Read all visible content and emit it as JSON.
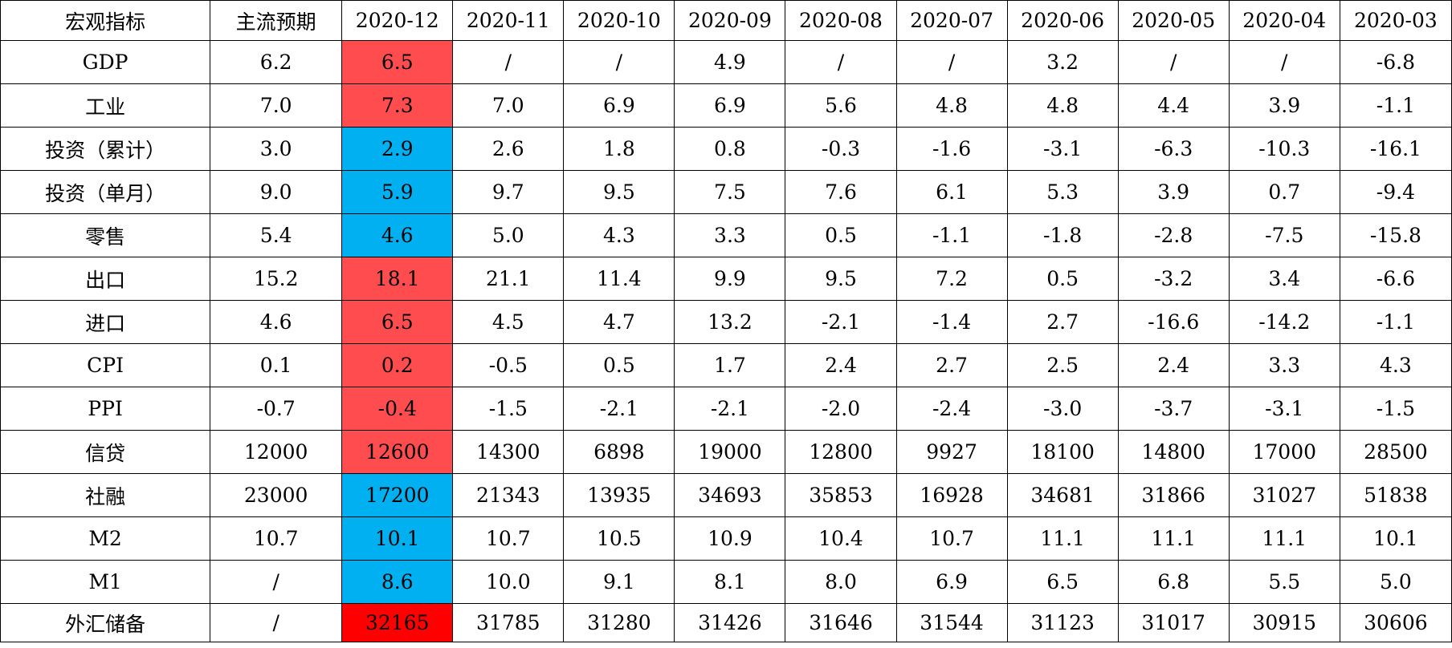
{
  "table": {
    "headers": [
      "宏观指标",
      "主流预期",
      "2020-12",
      "2020-11",
      "2020-10",
      "2020-09",
      "2020-08",
      "2020-07",
      "2020-06",
      "2020-05",
      "2020-04",
      "2020-03"
    ],
    "rows": [
      {
        "indicator": "GDP",
        "expected": "6.2",
        "highlight": "red",
        "values": [
          "6.5",
          "/",
          "/",
          "4.9",
          "/",
          "/",
          "3.2",
          "/",
          "/",
          "-6.8"
        ]
      },
      {
        "indicator": "工业",
        "expected": "7.0",
        "highlight": "red",
        "values": [
          "7.3",
          "7.0",
          "6.9",
          "6.9",
          "5.6",
          "4.8",
          "4.8",
          "4.4",
          "3.9",
          "-1.1"
        ]
      },
      {
        "indicator": "投资（累计）",
        "expected": "3.0",
        "highlight": "blue",
        "values": [
          "2.9",
          "2.6",
          "1.8",
          "0.8",
          "-0.3",
          "-1.6",
          "-3.1",
          "-6.3",
          "-10.3",
          "-16.1"
        ]
      },
      {
        "indicator": "投资（单月）",
        "expected": "9.0",
        "highlight": "blue",
        "values": [
          "5.9",
          "9.7",
          "9.5",
          "7.5",
          "7.6",
          "6.1",
          "5.3",
          "3.9",
          "0.7",
          "-9.4"
        ]
      },
      {
        "indicator": "零售",
        "expected": "5.4",
        "highlight": "blue",
        "values": [
          "4.6",
          "5.0",
          "4.3",
          "3.3",
          "0.5",
          "-1.1",
          "-1.8",
          "-2.8",
          "-7.5",
          "-15.8"
        ]
      },
      {
        "indicator": "出口",
        "expected": "15.2",
        "highlight": "red",
        "values": [
          "18.1",
          "21.1",
          "11.4",
          "9.9",
          "9.5",
          "7.2",
          "0.5",
          "-3.2",
          "3.4",
          "-6.6"
        ]
      },
      {
        "indicator": "进口",
        "expected": "4.6",
        "highlight": "red",
        "values": [
          "6.5",
          "4.5",
          "4.7",
          "13.2",
          "-2.1",
          "-1.4",
          "2.7",
          "-16.6",
          "-14.2",
          "-1.1"
        ]
      },
      {
        "indicator": "CPI",
        "expected": "0.1",
        "highlight": "red",
        "values": [
          "0.2",
          "-0.5",
          "0.5",
          "1.7",
          "2.4",
          "2.7",
          "2.5",
          "2.4",
          "3.3",
          "4.3"
        ]
      },
      {
        "indicator": "PPI",
        "expected": "-0.7",
        "highlight": "red",
        "values": [
          "-0.4",
          "-1.5",
          "-2.1",
          "-2.1",
          "-2.0",
          "-2.4",
          "-3.0",
          "-3.7",
          "-3.1",
          "-1.5"
        ]
      },
      {
        "indicator": "信贷",
        "expected": "12000",
        "highlight": "red",
        "values": [
          "12600",
          "14300",
          "6898",
          "19000",
          "12800",
          "9927",
          "18100",
          "14800",
          "17000",
          "28500"
        ]
      },
      {
        "indicator": "社融",
        "expected": "23000",
        "highlight": "blue",
        "values": [
          "17200",
          "21343",
          "13935",
          "34693",
          "35853",
          "16928",
          "34681",
          "31866",
          "31027",
          "51838"
        ]
      },
      {
        "indicator": "M2",
        "expected": "10.7",
        "highlight": "blue",
        "values": [
          "10.1",
          "10.7",
          "10.5",
          "10.9",
          "10.4",
          "10.7",
          "11.1",
          "11.1",
          "11.1",
          "10.1"
        ]
      },
      {
        "indicator": "M1",
        "expected": "/",
        "highlight": "blue",
        "values": [
          "8.6",
          "10.0",
          "9.1",
          "8.1",
          "8.0",
          "6.9",
          "6.5",
          "6.8",
          "5.5",
          "5.0"
        ]
      },
      {
        "indicator": "外汇储备",
        "expected": "/",
        "highlight": "crimson",
        "values": [
          "32165",
          "31785",
          "31280",
          "31426",
          "31646",
          "31544",
          "31123",
          "31017",
          "30915",
          "30606"
        ]
      }
    ]
  },
  "colors": {
    "red": "#ff4d4f",
    "blue": "#00b0f0",
    "crimson": "#ff0000",
    "border": "#000000",
    "background": "#ffffff"
  }
}
